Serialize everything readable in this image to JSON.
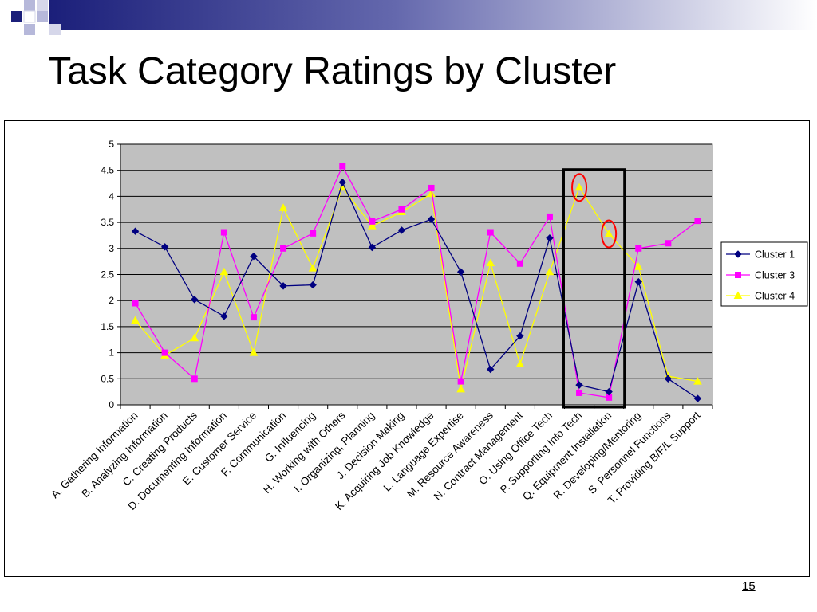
{
  "slide": {
    "title": "Task Category Ratings by Cluster",
    "page_number": "15"
  },
  "colors": {
    "header_bar": "#2b2e88",
    "header_square_dark": "#1b1f7a",
    "header_square_light": "#b6b8da",
    "plot_background": "#c0c0c0",
    "cluster1": "#000080",
    "cluster3": "#ff00ff",
    "cluster4": "#ffff00",
    "highlight_box": "#000000",
    "highlight_ellipse": "#ff0000"
  },
  "chart_data": {
    "type": "line",
    "categories": [
      "A. Gathering Information",
      "B. Analyzing Information",
      "C. Creating Products",
      "D. Documenting Information",
      "E. Customer Service",
      "F. Communication",
      "G. Influencing",
      "H. Working with Others",
      "I. Organizing, Planning",
      "J. Decision Making",
      "K. Acquiring Job Knowledge",
      "L. Language Expertise",
      "M. Resource Awareness",
      "N. Contract Management",
      "O. Using Office Tech",
      "P. Supporting Info Tech",
      "Q. Equipment Installation",
      "R. Developing/Mentoring",
      "S. Personnel Functions",
      "T. Providing B/F/L Support"
    ],
    "series": [
      {
        "name": "Cluster 1",
        "color": "#000080",
        "marker": "diamond",
        "values": [
          3.33,
          3.03,
          2.02,
          1.7,
          2.85,
          2.28,
          2.3,
          4.27,
          3.02,
          3.35,
          3.56,
          2.55,
          0.68,
          1.32,
          3.2,
          0.38,
          0.25,
          2.36,
          0.5,
          0.12
        ]
      },
      {
        "name": "Cluster 3",
        "color": "#ff00ff",
        "marker": "square",
        "values": [
          1.95,
          1.0,
          0.5,
          3.31,
          1.68,
          3.0,
          3.29,
          4.58,
          3.52,
          3.75,
          4.16,
          0.45,
          3.31,
          2.71,
          3.61,
          0.23,
          0.14,
          3.0,
          3.1,
          3.53
        ]
      },
      {
        "name": "Cluster 4",
        "color": "#ffff00",
        "marker": "triangle",
        "values": [
          1.62,
          0.95,
          1.28,
          2.55,
          1.0,
          3.78,
          2.62,
          4.17,
          3.43,
          3.7,
          4.05,
          0.3,
          2.72,
          0.78,
          2.55,
          4.17,
          3.28,
          2.65,
          0.55,
          0.45
        ]
      }
    ],
    "yticks": [
      "0",
      "0.5",
      "1",
      "1.5",
      "2",
      "2.5",
      "3",
      "3.5",
      "4",
      "4.5",
      "5"
    ],
    "ylim": [
      0,
      5
    ],
    "grid": true,
    "legend_position": "right",
    "highlight": {
      "box_categories": [
        "P. Supporting Info Tech",
        "Q. Equipment Installation"
      ],
      "circled_points": [
        {
          "category": "P. Supporting Info Tech",
          "series": "Cluster 4"
        },
        {
          "category": "Q. Equipment Installation",
          "series": "Cluster 4"
        }
      ]
    }
  }
}
